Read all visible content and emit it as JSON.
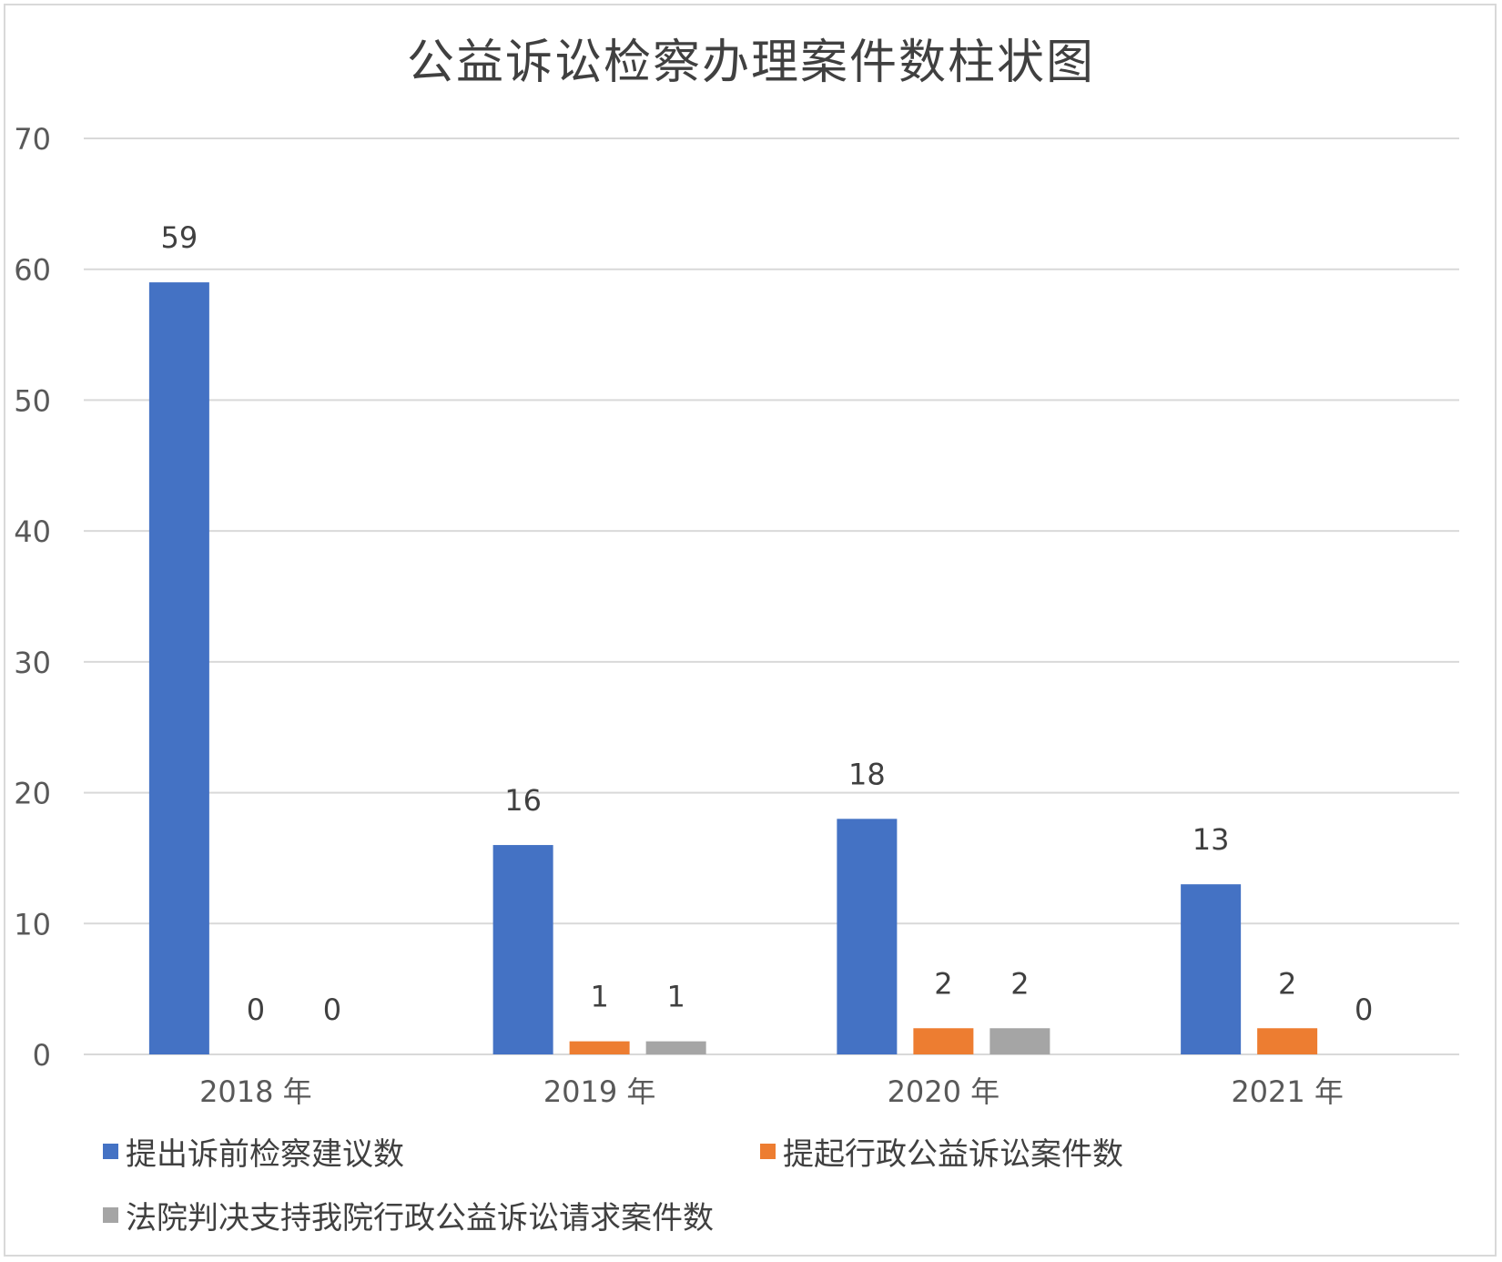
{
  "chart_data": {
    "type": "bar",
    "title": "公益诉讼检察办理案件数柱状图",
    "categories": [
      "2018 年",
      "2019 年",
      "2020 年",
      "2021 年"
    ],
    "ylim": [
      0,
      70
    ],
    "yticks": [
      "0",
      "10",
      "20",
      "30",
      "40",
      "50",
      "60",
      "70"
    ],
    "grid": true,
    "legend_position": "bottom",
    "series": [
      {
        "name": "提出诉前检察建议数",
        "color": "#4472C4",
        "values": [
          59,
          16,
          18,
          13
        ]
      },
      {
        "name": "提起行政公益诉讼案件数",
        "color": "#ED7D31",
        "values": [
          0,
          1,
          2,
          2
        ]
      },
      {
        "name": "法院判决支持我院行政公益诉讼请求案件数",
        "color": "#A5A5A5",
        "values": [
          0,
          1,
          2,
          0
        ]
      }
    ]
  }
}
